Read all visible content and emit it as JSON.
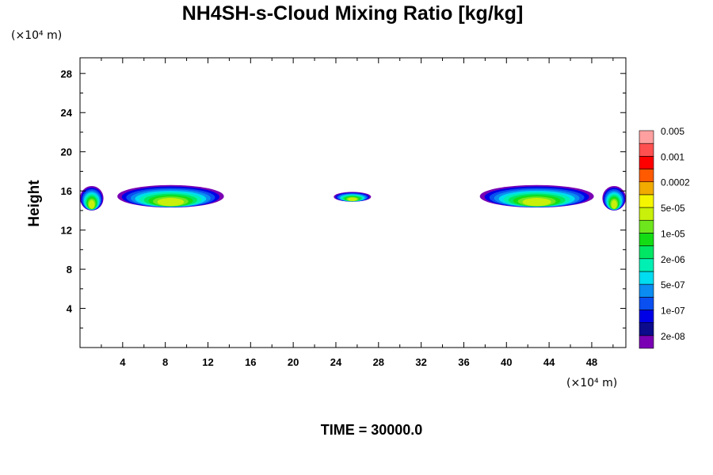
{
  "chart_data": {
    "type": "heatmap",
    "title": "NH4SH-s-Cloud Mixing Ratio [kg/kg]",
    "ylabel": "Height",
    "xlabel": "",
    "x_unit": "(×10⁴ m)",
    "y_unit": "(×10⁴ m)",
    "xlim": [
      0,
      51.2
    ],
    "ylim": [
      0,
      29.6
    ],
    "x_ticks": [
      4,
      8,
      12,
      16,
      20,
      24,
      28,
      32,
      36,
      40,
      44,
      48
    ],
    "y_ticks": [
      4,
      8,
      12,
      16,
      20,
      24,
      28
    ],
    "grid": false,
    "time_label": "TIME = 30000.0",
    "colorbar": {
      "colors": [
        "#7a00b4",
        "#0b0b8c",
        "#0000e6",
        "#0a4ff0",
        "#0a8cf0",
        "#00dcf0",
        "#00f0b4",
        "#00e664",
        "#14dc14",
        "#6ee61e",
        "#c8f00a",
        "#f5f500",
        "#f0aa00",
        "#ff5a00",
        "#ff0000",
        "#ff5050",
        "#ffa0a0"
      ],
      "labels": [
        "2e-08",
        "1e-07",
        "5e-07",
        "2e-06",
        "1e-05",
        "5e-05",
        "0.0002",
        "0.001",
        "0.005"
      ]
    },
    "clouds": [
      {
        "x_start": 0.0,
        "x_end": 2.2,
        "y_bottom": 14.0,
        "y_top": 16.5
      },
      {
        "x_start": 3.5,
        "x_end": 13.5,
        "y_bottom": 14.3,
        "y_top": 16.6
      },
      {
        "x_start": 23.8,
        "x_end": 27.3,
        "y_bottom": 14.9,
        "y_top": 15.9
      },
      {
        "x_start": 37.5,
        "x_end": 48.2,
        "y_bottom": 14.3,
        "y_top": 16.6
      },
      {
        "x_start": 49.0,
        "x_end": 51.2,
        "y_bottom": 14.0,
        "y_top": 16.5
      }
    ]
  }
}
